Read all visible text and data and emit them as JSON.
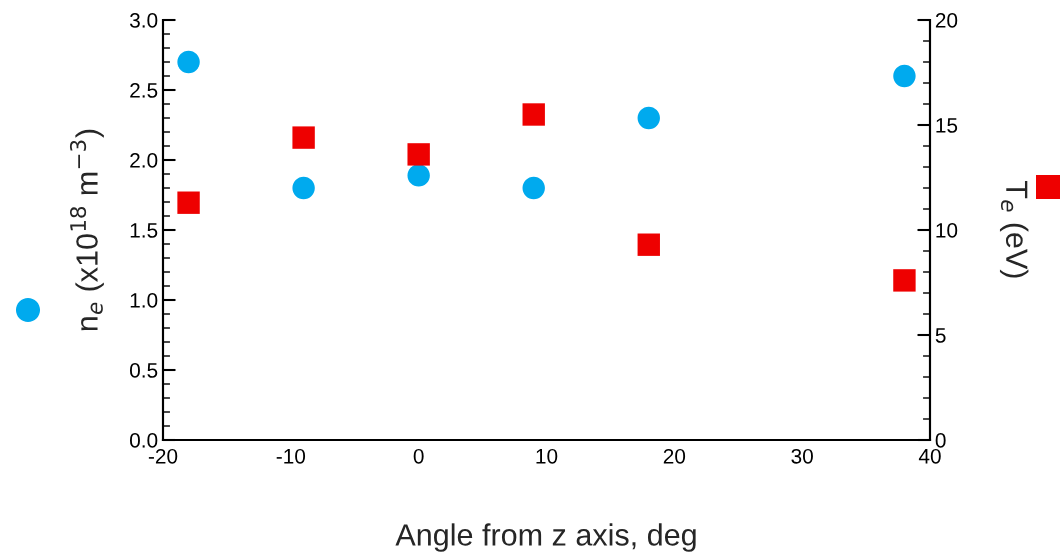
{
  "chart_data": {
    "type": "scatter",
    "xlabel": "Angle from z axis, deg",
    "ylabel": "n$_{e}$ (x10$^{18}$ m$^{−3}$)",
    "y2label": "T$_{e}$ (eV)",
    "x": [
      -18,
      -9,
      0,
      9,
      18,
      38
    ],
    "series": [
      {
        "color": "#00aaee",
        "marker": "circle",
        "values": [
          2.7,
          1.8,
          1.89,
          1.8,
          2.3,
          2.6
        ]
      },
      {
        "color": "#ee0000",
        "marker": "square",
        "axis": "y2",
        "values": [
          11.3,
          14.4,
          13.6,
          15.5,
          9.3,
          7.6
        ]
      }
    ],
    "xlim": [
      -20,
      40
    ],
    "xticks": [
      -20,
      -10,
      0,
      10,
      20,
      30,
      40
    ],
    "ylim": [
      0,
      3
    ],
    "yticks": [
      {
        "value": 0,
        "label": "0.0"
      },
      0.5,
      {
        "value": 1,
        "label": "1.0"
      },
      1.5,
      {
        "value": 2,
        "label": "2.0"
      },
      2.5,
      {
        "value": 3,
        "label": "3.0"
      }
    ],
    "y2lim": [
      0,
      20
    ],
    "y2ticks": [
      0,
      5,
      10,
      15,
      20
    ],
    "grid": false,
    "legend": false
  }
}
